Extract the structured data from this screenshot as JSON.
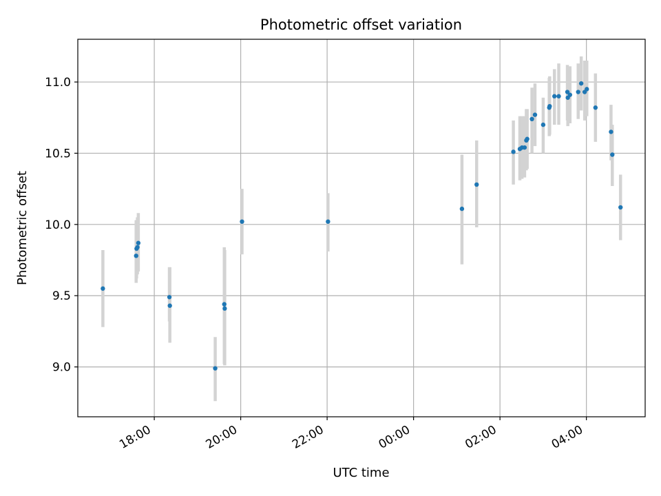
{
  "chart_data": {
    "type": "scatter",
    "title": "Photometric offset variation",
    "xlabel": "UTC time",
    "ylabel": "Photometric offset",
    "grid": true,
    "x_unit": "hours since 18:00 UTC on the first night",
    "xlim": [
      -1.77,
      11.36
    ],
    "ylim": [
      8.65,
      11.3
    ],
    "x_ticks": [
      {
        "value": 0,
        "label": "18:00"
      },
      {
        "value": 2,
        "label": "20:00"
      },
      {
        "value": 4,
        "label": "22:00"
      },
      {
        "value": 6,
        "label": "00:00"
      },
      {
        "value": 8,
        "label": "02:00"
      },
      {
        "value": 10,
        "label": "04:00"
      }
    ],
    "y_ticks": [
      {
        "value": 9.0,
        "label": "9.0"
      },
      {
        "value": 9.5,
        "label": "9.5"
      },
      {
        "value": 10.0,
        "label": "10.0"
      },
      {
        "value": 10.5,
        "label": "10.5"
      },
      {
        "value": 11.0,
        "label": "11.0"
      }
    ],
    "colors": {
      "point": "#1f77b4",
      "errorbar": "#d3d3d3",
      "grid": "#b0b0b0",
      "axes": "#000000"
    },
    "series": [
      {
        "name": "Photometric offset",
        "points": [
          {
            "x": -1.19,
            "y": 9.55,
            "low": 9.28,
            "high": 9.82
          },
          {
            "x": -0.42,
            "y": 9.78,
            "low": 9.59,
            "high": 10.03
          },
          {
            "x": -0.41,
            "y": 9.83,
            "low": 9.62,
            "high": 10.03
          },
          {
            "x": -0.39,
            "y": 9.84,
            "low": 9.65,
            "high": 10.05
          },
          {
            "x": -0.37,
            "y": 9.87,
            "low": 9.67,
            "high": 10.08
          },
          {
            "x": 0.35,
            "y": 9.49,
            "low": 9.32,
            "high": 9.7
          },
          {
            "x": 0.36,
            "y": 9.43,
            "low": 9.17,
            "high": 9.7
          },
          {
            "x": 1.41,
            "y": 8.99,
            "low": 8.76,
            "high": 9.21
          },
          {
            "x": 1.62,
            "y": 9.44,
            "low": 9.02,
            "high": 9.84
          },
          {
            "x": 1.63,
            "y": 9.41,
            "low": 9.01,
            "high": 9.82
          },
          {
            "x": 2.03,
            "y": 10.02,
            "low": 9.79,
            "high": 10.25
          },
          {
            "x": 4.02,
            "y": 10.02,
            "low": 9.81,
            "high": 10.22
          },
          {
            "x": 7.12,
            "y": 10.11,
            "low": 9.72,
            "high": 10.49
          },
          {
            "x": 7.46,
            "y": 10.28,
            "low": 9.98,
            "high": 10.59
          },
          {
            "x": 8.31,
            "y": 10.51,
            "low": 10.28,
            "high": 10.73
          },
          {
            "x": 8.46,
            "y": 10.53,
            "low": 10.31,
            "high": 10.76
          },
          {
            "x": 8.51,
            "y": 10.54,
            "low": 10.32,
            "high": 10.76
          },
          {
            "x": 8.57,
            "y": 10.54,
            "low": 10.33,
            "high": 10.76
          },
          {
            "x": 8.61,
            "y": 10.59,
            "low": 10.38,
            "high": 10.81
          },
          {
            "x": 8.63,
            "y": 10.6,
            "low": 10.39,
            "high": 10.81
          },
          {
            "x": 8.74,
            "y": 10.74,
            "low": 10.5,
            "high": 10.96
          },
          {
            "x": 8.81,
            "y": 10.77,
            "low": 10.55,
            "high": 10.99
          },
          {
            "x": 9.0,
            "y": 10.7,
            "low": 10.5,
            "high": 10.89
          },
          {
            "x": 9.14,
            "y": 10.82,
            "low": 10.62,
            "high": 11.03
          },
          {
            "x": 9.15,
            "y": 10.83,
            "low": 10.63,
            "high": 11.04
          },
          {
            "x": 9.26,
            "y": 10.9,
            "low": 10.7,
            "high": 11.09
          },
          {
            "x": 9.36,
            "y": 10.9,
            "low": 10.7,
            "high": 11.13
          },
          {
            "x": 9.56,
            "y": 10.93,
            "low": 10.73,
            "high": 11.12
          },
          {
            "x": 9.57,
            "y": 10.89,
            "low": 10.69,
            "high": 11.1
          },
          {
            "x": 9.62,
            "y": 10.91,
            "low": 10.71,
            "high": 11.11
          },
          {
            "x": 9.81,
            "y": 10.93,
            "low": 10.74,
            "high": 11.13
          },
          {
            "x": 9.88,
            "y": 10.99,
            "low": 10.8,
            "high": 11.18
          },
          {
            "x": 9.96,
            "y": 10.93,
            "low": 10.73,
            "high": 11.15
          },
          {
            "x": 10.01,
            "y": 10.95,
            "low": 10.76,
            "high": 11.15
          },
          {
            "x": 10.21,
            "y": 10.82,
            "low": 10.58,
            "high": 11.06
          },
          {
            "x": 10.57,
            "y": 10.65,
            "low": 10.45,
            "high": 10.84
          },
          {
            "x": 10.6,
            "y": 10.49,
            "low": 10.27,
            "high": 10.7
          },
          {
            "x": 10.79,
            "y": 10.12,
            "low": 9.89,
            "high": 10.35
          }
        ]
      }
    ]
  }
}
